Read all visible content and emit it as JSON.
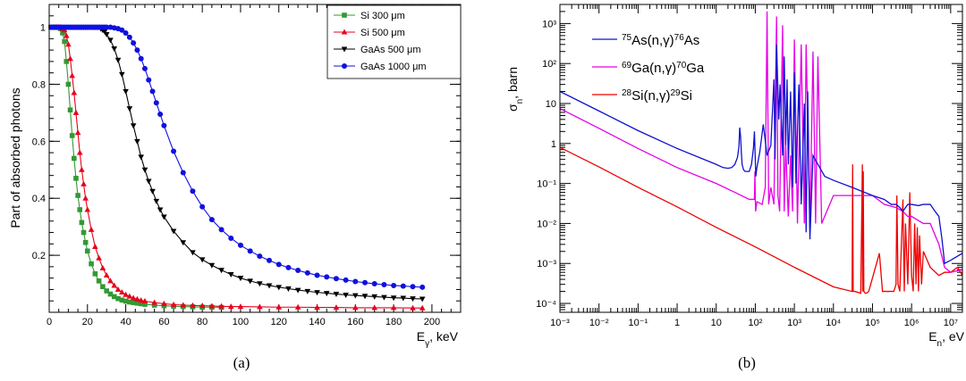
{
  "chart_data": [
    {
      "type": "line",
      "panel_label": "(a)",
      "xlabel": "E_γ, keV",
      "xlabel_main": "E",
      "xlabel_sub": "γ",
      "xlabel_rest": ", keV",
      "ylabel": "Part of absorbed photons",
      "xlim": [
        0,
        215
      ],
      "ylim": [
        0,
        1.08
      ],
      "xticks": [
        0,
        20,
        40,
        60,
        80,
        100,
        120,
        140,
        160,
        180,
        200
      ],
      "xtick_labels": [
        "0",
        "20",
        "40",
        "60",
        "80",
        "100",
        "120",
        "140",
        "160",
        "180",
        "200"
      ],
      "yticks": [
        0.2,
        0.4,
        0.6,
        0.8,
        1.0
      ],
      "ytick_labels": [
        "0.2",
        "0.4",
        "0.6",
        "0.8",
        "1"
      ],
      "legend_position": "top-right",
      "series": [
        {
          "name": "Si 300 μm",
          "color": "#339933",
          "marker": "square",
          "x": [
            1,
            2,
            3,
            4,
            5,
            6,
            7,
            8,
            9,
            10,
            11,
            12,
            13,
            14,
            15,
            16,
            17,
            18,
            19,
            20,
            22,
            24,
            26,
            28,
            30,
            32,
            34,
            36,
            38,
            40,
            42,
            44,
            46,
            48,
            50,
            55,
            60,
            65,
            70,
            75,
            80,
            85,
            90
          ],
          "y": [
            1.0,
            1.0,
            1.0,
            1.0,
            1.0,
            0.995,
            0.98,
            0.95,
            0.88,
            0.8,
            0.71,
            0.62,
            0.54,
            0.47,
            0.41,
            0.36,
            0.315,
            0.28,
            0.245,
            0.215,
            0.17,
            0.135,
            0.11,
            0.09,
            0.075,
            0.064,
            0.055,
            0.048,
            0.043,
            0.039,
            0.036,
            0.034,
            0.032,
            0.03,
            0.028,
            0.025,
            0.023,
            0.021,
            0.02,
            0.019,
            0.018,
            0.018,
            0.017
          ]
        },
        {
          "name": "Si 500 μm",
          "color": "#e8001c",
          "marker": "triangle-up",
          "x": [
            1,
            2,
            3,
            4,
            5,
            6,
            7,
            8,
            9,
            10,
            11,
            12,
            13,
            14,
            15,
            16,
            17,
            18,
            19,
            20,
            22,
            24,
            26,
            28,
            30,
            32,
            34,
            36,
            38,
            40,
            42,
            44,
            46,
            48,
            50,
            55,
            60,
            65,
            70,
            75,
            80,
            85,
            90,
            95,
            100,
            110,
            120,
            130,
            140,
            150,
            160,
            170,
            180,
            190,
            195
          ],
          "y": [
            1.0,
            1.0,
            1.0,
            1.0,
            1.0,
            1.0,
            0.995,
            0.99,
            0.97,
            0.94,
            0.89,
            0.83,
            0.77,
            0.7,
            0.63,
            0.56,
            0.5,
            0.45,
            0.4,
            0.36,
            0.29,
            0.23,
            0.19,
            0.155,
            0.13,
            0.11,
            0.094,
            0.08,
            0.07,
            0.062,
            0.056,
            0.05,
            0.046,
            0.042,
            0.039,
            0.034,
            0.03,
            0.027,
            0.025,
            0.024,
            0.023,
            0.022,
            0.021,
            0.02,
            0.02,
            0.019,
            0.018,
            0.018,
            0.017,
            0.017,
            0.016,
            0.016,
            0.016,
            0.015,
            0.015
          ]
        },
        {
          "name": "GaAs 500 μm",
          "color": "#000000",
          "marker": "triangle-down",
          "x": [
            1,
            2,
            3,
            4,
            5,
            6,
            7,
            8,
            9,
            10,
            11,
            12,
            13,
            14,
            15,
            16,
            17,
            18,
            19,
            20,
            21,
            22,
            23,
            24,
            25,
            26,
            27,
            28,
            29,
            30,
            32,
            34,
            36,
            38,
            40,
            42,
            44,
            46,
            48,
            50,
            52,
            54,
            56,
            58,
            60,
            65,
            70,
            75,
            80,
            85,
            90,
            95,
            100,
            105,
            110,
            115,
            120,
            125,
            130,
            135,
            140,
            145,
            150,
            155,
            160,
            165,
            170,
            175,
            180,
            185,
            190,
            195
          ],
          "y": [
            1.0,
            1.0,
            1.0,
            1.0,
            1.0,
            1.0,
            1.0,
            1.0,
            1.0,
            1.0,
            1.0,
            1.0,
            1.0,
            1.0,
            1.0,
            1.0,
            1.0,
            1.0,
            1.0,
            1.0,
            1.0,
            1.0,
            1.0,
            1.0,
            1.0,
            1.0,
            0.995,
            0.99,
            0.985,
            0.975,
            0.955,
            0.925,
            0.885,
            0.835,
            0.775,
            0.715,
            0.655,
            0.6,
            0.545,
            0.5,
            0.46,
            0.425,
            0.39,
            0.36,
            0.335,
            0.285,
            0.245,
            0.21,
            0.185,
            0.165,
            0.148,
            0.133,
            0.12,
            0.11,
            0.101,
            0.094,
            0.088,
            0.083,
            0.078,
            0.074,
            0.07,
            0.067,
            0.064,
            0.061,
            0.059,
            0.057,
            0.055,
            0.053,
            0.051,
            0.05,
            0.048,
            0.047
          ]
        },
        {
          "name": "GaAs 1000 μm",
          "color": "#1010e0",
          "marker": "circle",
          "x": [
            1,
            2,
            3,
            4,
            5,
            6,
            7,
            8,
            9,
            10,
            11,
            12,
            13,
            14,
            15,
            16,
            17,
            18,
            19,
            20,
            21,
            22,
            23,
            24,
            25,
            26,
            27,
            28,
            29,
            30,
            32,
            34,
            36,
            38,
            40,
            42,
            44,
            46,
            48,
            50,
            52,
            54,
            56,
            58,
            60,
            65,
            70,
            75,
            80,
            85,
            90,
            95,
            100,
            105,
            110,
            115,
            120,
            125,
            130,
            135,
            140,
            145,
            150,
            155,
            160,
            165,
            170,
            175,
            180,
            185,
            190,
            195
          ],
          "y": [
            1.0,
            1.0,
            1.0,
            1.0,
            1.0,
            1.0,
            1.0,
            1.0,
            1.0,
            1.0,
            1.0,
            1.0,
            1.0,
            1.0,
            1.0,
            1.0,
            1.0,
            1.0,
            1.0,
            1.0,
            1.0,
            1.0,
            1.0,
            1.0,
            1.0,
            1.0,
            1.0,
            1.0,
            1.0,
            1.0,
            1.0,
            0.998,
            0.995,
            0.99,
            0.98,
            0.965,
            0.945,
            0.92,
            0.89,
            0.855,
            0.815,
            0.775,
            0.735,
            0.695,
            0.655,
            0.565,
            0.49,
            0.425,
            0.37,
            0.325,
            0.29,
            0.26,
            0.235,
            0.215,
            0.197,
            0.182,
            0.168,
            0.157,
            0.147,
            0.138,
            0.13,
            0.124,
            0.118,
            0.113,
            0.108,
            0.104,
            0.1,
            0.097,
            0.094,
            0.092,
            0.09,
            0.088
          ]
        }
      ]
    },
    {
      "type": "line",
      "panel_label": "(b)",
      "xlabel": "E_n, eV",
      "xlabel_main": "E",
      "xlabel_sub": "n",
      "xlabel_rest": ", eV",
      "ylabel": "σ_n, barn",
      "ylabel_main": "σ",
      "ylabel_sub": "n",
      "ylabel_rest": ", barn",
      "xscale": "log",
      "yscale": "log",
      "xlim": [
        0.001,
        20000000
      ],
      "ylim": [
        6e-05,
        3000
      ],
      "xtick_labels": [
        "10⁻³",
        "10⁻²",
        "10⁻¹",
        "1",
        "10",
        "10²",
        "10³",
        "10⁴",
        "10⁵",
        "10⁶",
        "10⁷"
      ],
      "ytick_labels": [
        "10⁻⁴",
        "10⁻³",
        "10⁻²",
        "10⁻¹",
        "1",
        "10",
        "10²",
        "10³"
      ],
      "legend_position": "top-left",
      "series": [
        {
          "name": "⁷⁵As(n,γ)⁷⁶As",
          "name_parts": [
            "75",
            "As(n,",
            "γ",
            ")",
            "76",
            "As"
          ],
          "color": "#1010d0",
          "x": [
            0.001,
            0.01,
            0.1,
            1,
            10,
            15,
            20,
            25,
            30,
            35,
            38,
            40,
            42,
            44,
            46,
            50,
            55,
            60,
            70,
            80,
            90,
            95,
            100,
            103,
            110,
            130,
            160,
            200,
            250,
            300,
            320,
            350,
            400,
            430,
            500,
            550,
            600,
            650,
            700,
            800,
            900,
            1000,
            1100,
            1300,
            1500,
            1800,
            2000,
            2200,
            2500,
            3000,
            4000,
            6000,
            10000,
            30000,
            100000,
            200000,
            300000,
            400000,
            500000,
            600000,
            700000,
            800000,
            1000000,
            1500000,
            2000000,
            3000000,
            4000000,
            5000000,
            6000000,
            7000000,
            10000000,
            20000000
          ],
          "y": [
            20,
            6.5,
            2.1,
            0.75,
            0.3,
            0.25,
            0.24,
            0.25,
            0.3,
            0.45,
            0.8,
            2.5,
            1.5,
            0.6,
            0.3,
            0.22,
            0.2,
            0.2,
            0.2,
            0.3,
            0.8,
            2,
            0.4,
            0.15,
            0.25,
            0.6,
            3,
            0.5,
            0.9,
            40,
            0.4,
            300,
            4,
            30,
            0.5,
            150,
            0.9,
            40,
            0.3,
            20,
            0.08,
            60,
            0.1,
            30,
            0.03,
            10,
            0.006,
            20,
            0.004,
            0.5,
            0.3,
            0.15,
            0.12,
            0.08,
            0.05,
            0.04,
            0.03,
            0.03,
            0.025,
            0.02,
            0.025,
            0.03,
            0.03,
            0.028,
            0.03,
            0.03,
            0.02,
            0.015,
            0.004,
            0.001,
            0.0012,
            0.0018
          ]
        },
        {
          "name": "⁶⁹Ga(n,γ)⁷⁰Ga",
          "name_parts": [
            "69",
            "Ga(n,",
            "γ",
            ")",
            "70",
            "Ga"
          ],
          "color": "#e600e6",
          "x": [
            0.001,
            0.01,
            0.1,
            1,
            10,
            30,
            70,
            95,
            98,
            100,
            102,
            110,
            150,
            180,
            200,
            220,
            250,
            300,
            350,
            380,
            420,
            500,
            550,
            600,
            700,
            800,
            900,
            1000,
            1200,
            1500,
            1800,
            2000,
            2500,
            3000,
            3500,
            4000,
            5000,
            10000,
            30000,
            100000,
            200000,
            400000,
            600000,
            800000,
            1000000,
            2000000,
            3000000,
            5000000,
            7000000,
            10000000,
            20000000
          ],
          "y": [
            7.5,
            2.4,
            0.75,
            0.25,
            0.1,
            0.06,
            0.04,
            0.04,
            0.2,
            0.04,
            0.02,
            0.035,
            0.03,
            0.08,
            2000,
            0.03,
            0.08,
            0.03,
            1500,
            0.05,
            0.02,
            900,
            0.02,
            0.9,
            0.015,
            0.5,
            0.02,
            400,
            0.01,
            300,
            0.01,
            300,
            0.008,
            200,
            0.01,
            150,
            0.01,
            0.05,
            0.05,
            0.05,
            0.03,
            0.025,
            0.02,
            0.015,
            0.015,
            0.01,
            0.01,
            0.003,
            0.0008,
            0.0006,
            0.0007
          ]
        },
        {
          "name": "²⁸Si(n,γ)²⁹Si",
          "name_parts": [
            "28",
            "Si(n,",
            "γ",
            ")",
            "29",
            "Si"
          ],
          "color": "#ee0000",
          "x": [
            0.001,
            0.01,
            0.1,
            1,
            10,
            100,
            1000,
            10000,
            30000,
            31000,
            32000,
            35000,
            50000,
            55000,
            56000,
            58000,
            60000,
            65000,
            70000,
            80000,
            150000,
            180000,
            200000,
            250000,
            300000,
            350000,
            400000,
            420000,
            450000,
            500000,
            600000,
            650000,
            700000,
            800000,
            900000,
            1000000,
            1100000,
            1200000,
            1300000,
            1400000,
            1500000,
            1600000,
            1800000,
            2000000,
            3000000,
            5000000,
            7000000,
            10000000,
            15000000,
            20000000
          ],
          "y": [
            0.8,
            0.26,
            0.08,
            0.026,
            0.008,
            0.0026,
            0.0008,
            0.00026,
            0.0002,
            0.3,
            0.0002,
            0.0002,
            0.00018,
            0.3,
            0.0002,
            0.2,
            0.0002,
            0.00018,
            0.00018,
            0.0002,
            0.0018,
            0.0002,
            0.0002,
            0.0002,
            0.0002,
            0.0002,
            0.0003,
            0.05,
            0.0003,
            0.0002,
            0.04,
            0.0002,
            0.01,
            0.0003,
            0.06,
            0.0005,
            0.0002,
            0.01,
            0.0003,
            0.008,
            0.0002,
            0.005,
            0.0003,
            0.002,
            0.0008,
            0.0005,
            0.0006,
            0.0006,
            0.0008,
            0.0005
          ]
        }
      ]
    }
  ]
}
